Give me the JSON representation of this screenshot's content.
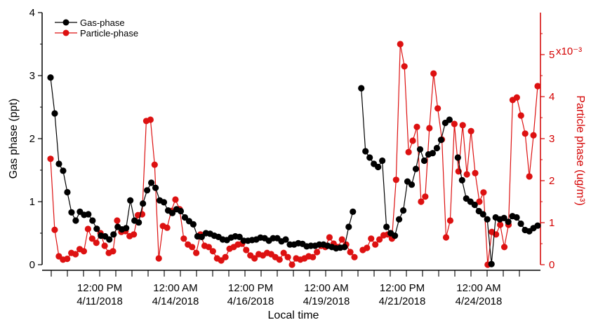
{
  "chart_data": {
    "type": "line",
    "xlabel": "Local time",
    "ylabel_left": "Gas phase (ppt)",
    "ylabel_right": "Particle phase (ug/m³)",
    "right_axis_multiplier": "x10⁻³",
    "ylim_left": [
      0,
      4
    ],
    "ylim_right": [
      0,
      0.006
    ],
    "yticks_left": [
      "0",
      "1",
      "2",
      "3",
      "4"
    ],
    "yticks_right": [
      "0",
      "1",
      "2",
      "3",
      "4",
      "5"
    ],
    "x_tick_labels": [
      {
        "time": "12:00 PM",
        "date": "4/11/2018"
      },
      {
        "time": "12:00 AM",
        "date": "4/14/2018"
      },
      {
        "time": "12:00 PM",
        "date": "4/16/2018"
      },
      {
        "time": "12:00 AM",
        "date": "4/19/2018"
      },
      {
        "time": "12:00 PM",
        "date": "4/21/2018"
      },
      {
        "time": "12:00 AM",
        "date": "4/24/2018"
      }
    ],
    "legend_position": "top-left",
    "series": [
      {
        "name": "Gas-phase",
        "axis": "left",
        "color": "#000000",
        "values": [
          2.97,
          2.4,
          1.6,
          1.49,
          1.15,
          0.83,
          0.7,
          0.84,
          0.79,
          0.8,
          0.7,
          0.57,
          0.46,
          0.45,
          0.4,
          0.48,
          0.6,
          0.56,
          0.58,
          1.02,
          0.7,
          0.67,
          0.97,
          1.18,
          1.3,
          1.22,
          1.02,
          0.99,
          0.86,
          0.82,
          0.88,
          0.85,
          0.75,
          0.69,
          0.64,
          0.45,
          0.44,
          0.5,
          0.49,
          0.46,
          0.44,
          0.4,
          0.39,
          0.43,
          0.45,
          0.44,
          0.38,
          0.38,
          0.39,
          0.4,
          0.43,
          0.42,
          0.38,
          0.42,
          0.42,
          0.37,
          0.4,
          0.32,
          0.32,
          0.34,
          0.33,
          0.29,
          0.3,
          0.3,
          0.32,
          0.32,
          0.3,
          0.28,
          0.26,
          0.27,
          0.28,
          0.6,
          0.84,
          null,
          2.8,
          1.8,
          1.7,
          1.6,
          1.55,
          1.65,
          0.6,
          0.5,
          0.46,
          0.72,
          0.86,
          1.32,
          1.27,
          1.52,
          1.83,
          1.65,
          1.75,
          1.77,
          1.85,
          1.98,
          2.25,
          2.3,
          null,
          1.7,
          1.34,
          1.05,
          1.0,
          0.95,
          0.85,
          0.8,
          0.72,
          0.01,
          0.75,
          0.72,
          0.74,
          0.68,
          0.77,
          0.75,
          0.65,
          0.55,
          0.53,
          0.58,
          0.62
        ]
      },
      {
        "name": "Particle-phase",
        "axis": "right",
        "color": "#dd1111",
        "values": [
          0.00252,
          0.00083,
          0.0002,
          0.00012,
          0.00014,
          0.00028,
          0.00025,
          0.00037,
          0.00032,
          0.00085,
          0.00062,
          0.00052,
          0.00075,
          0.00045,
          0.00028,
          0.00032,
          0.00105,
          0.00078,
          0.0008,
          0.00068,
          0.00072,
          0.00118,
          0.0012,
          0.00342,
          0.00345,
          0.00238,
          0.00015,
          0.00092,
          0.00088,
          0.00128,
          0.00155,
          0.00132,
          0.00062,
          0.00048,
          0.00042,
          0.00028,
          0.00072,
          0.00045,
          0.00042,
          0.00032,
          0.00015,
          0.0001,
          0.00018,
          0.00038,
          0.00042,
          0.00048,
          0.0005,
          0.00035,
          0.00022,
          0.00015,
          0.00025,
          0.00022,
          0.00028,
          0.00025,
          0.00018,
          0.00012,
          0.00028,
          0.00018,
          0.0,
          0.00015,
          0.00012,
          0.00015,
          0.0002,
          0.00018,
          0.0003,
          0.00045,
          0.00042,
          0.00065,
          0.0005,
          0.00042,
          0.0006,
          0.00048,
          0.0003,
          0.00018,
          null,
          0.00035,
          0.0004,
          0.00062,
          0.00048,
          0.0006,
          0.0007,
          0.00072,
          0.00062,
          0.00202,
          0.00525,
          0.00472,
          0.00268,
          0.00295,
          0.00328,
          0.0015,
          0.00162,
          0.00325,
          0.00455,
          0.00372,
          0.00298,
          0.00065,
          0.00105,
          0.00335,
          0.00222,
          0.00332,
          0.00215,
          0.00318,
          0.00218,
          0.0015,
          0.00172,
          0.0,
          0.00078,
          0.00072,
          0.00095,
          0.00042,
          0.00095,
          0.00392,
          0.00398,
          0.00355,
          0.00312,
          0.0021,
          0.00308,
          0.00425
        ]
      }
    ]
  }
}
